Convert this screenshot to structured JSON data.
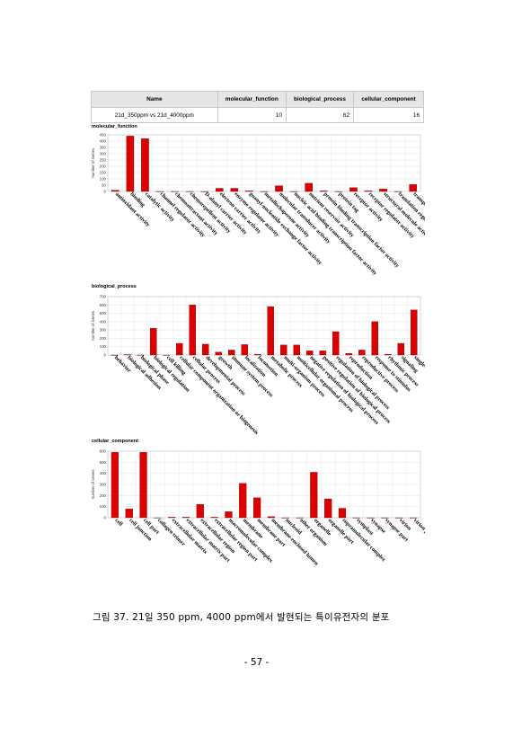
{
  "table": {
    "headers": [
      "Name",
      "molecular_function",
      "biological_process",
      "cellular_component"
    ],
    "rows": [
      [
        "21d_350ppm vs 21d_4000ppm",
        "10",
        "62",
        "16"
      ]
    ]
  },
  "chart_data": [
    {
      "type": "bar",
      "title": "molecular_function",
      "ylabel": "Number of Genes",
      "ylim": [
        0,
        450
      ],
      "yticks": [
        0,
        50,
        100,
        150,
        200,
        250,
        300,
        350,
        400,
        450
      ],
      "grid": true,
      "color": "#dd0000",
      "categories": [
        "antioxidant activity",
        "binding",
        "catalytic activity",
        "channel regulator activity",
        "chemoattractant activity",
        "chemorepellent activity",
        "D-alanyl carrier activity",
        "electron carrier activity",
        "enzyme regulator activity",
        "guanyl-nucleotide exchange factor activity",
        "metallochaperone activity",
        "molecular transducer activity",
        "nucleic acid binding transcription factor activity",
        "nutrient reservoir activity",
        "protein binding transcription factor activity",
        "protein tag",
        "receptor activity",
        "receptor regulator activity",
        "structural molecule activity",
        "translation regulator activity",
        "transporter activity"
      ],
      "values": [
        10,
        440,
        420,
        0,
        0,
        0,
        0,
        25,
        25,
        5,
        0,
        45,
        0,
        65,
        5,
        0,
        30,
        5,
        20,
        0,
        55
      ]
    },
    {
      "type": "bar",
      "title": "biological_process",
      "ylabel": "Number of Genes",
      "ylim": [
        0,
        700
      ],
      "yticks": [
        0,
        100,
        200,
        300,
        400,
        500,
        600,
        700
      ],
      "grid": true,
      "color": "#dd0000",
      "categories": [
        "behavior",
        "biological adhesion",
        "biological phase",
        "biological regulation",
        "cell killing",
        "cellular component organization or biogenesis",
        "cellular process",
        "developmental process",
        "growth",
        "immune system process",
        "localization",
        "locomotion",
        "metabolic process",
        "multi-organism process",
        "multicellular organismal process",
        "negative regulation of biological process",
        "positive regulation of biological process",
        "regulation of biological process",
        "reproduction",
        "reproductive process",
        "response to stimulus",
        "rhythmic process",
        "signaling",
        "single-organism process"
      ],
      "values": [
        0,
        5,
        0,
        320,
        0,
        140,
        600,
        130,
        35,
        60,
        125,
        10,
        580,
        120,
        120,
        50,
        50,
        280,
        20,
        60,
        400,
        10,
        140,
        540
      ]
    },
    {
      "type": "bar",
      "title": "cellular_component",
      "ylabel": "Number of Genes",
      "ylim": [
        0,
        600
      ],
      "yticks": [
        0,
        100,
        200,
        300,
        400,
        500,
        600
      ],
      "grid": true,
      "color": "#dd0000",
      "categories": [
        "cell",
        "cell junction",
        "cell part",
        "collagen trimer",
        "extracellular matrix",
        "extracellular matrix part",
        "extracellular region",
        "extracellular region part",
        "macromolecular complex",
        "membrane",
        "membrane part",
        "membrane-enclosed lumen",
        "nucleoid",
        "other organism",
        "organelle",
        "organelle part",
        "supramolecular complex",
        "symplast",
        "synapse",
        "synapse part",
        "virion",
        "virion part"
      ],
      "values": [
        590,
        80,
        590,
        0,
        5,
        5,
        120,
        5,
        55,
        310,
        180,
        10,
        0,
        0,
        410,
        170,
        85,
        0,
        0,
        0,
        0,
        0
      ]
    }
  ],
  "caption": "그림 37. 21일 350 ppm, 4000 ppm에서 발현되는 특이유전자의 분포",
  "page_number": "- 57 -"
}
